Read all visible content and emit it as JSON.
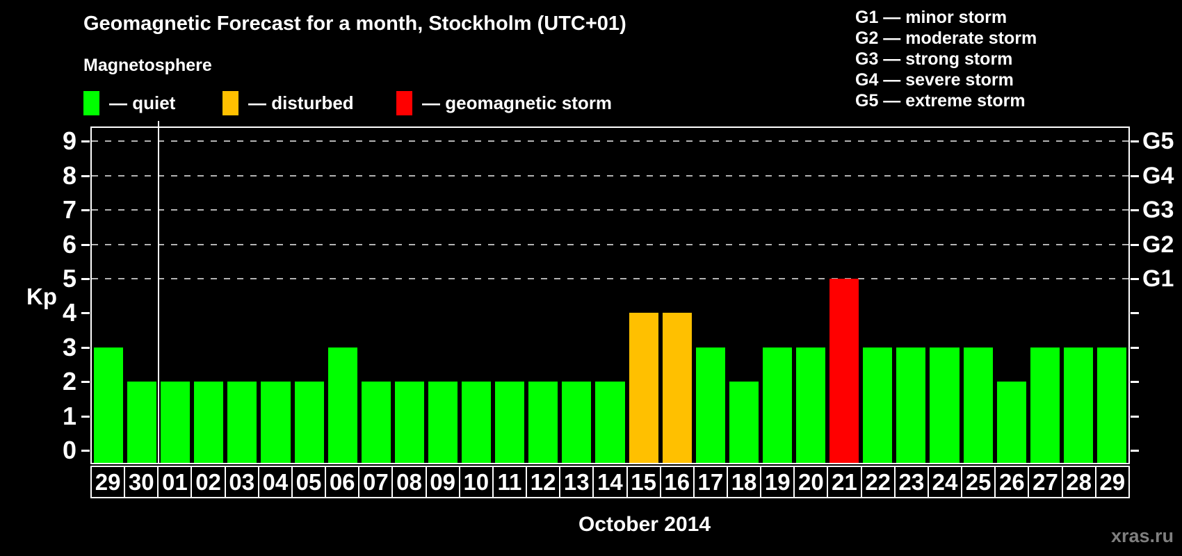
{
  "title": "Geomagnetic Forecast for a month, Stockholm (UTC+01)",
  "subtitle": "Magnetosphere",
  "legend": {
    "items": [
      {
        "label": "— quiet",
        "status": "quiet",
        "color": "#00ff00"
      },
      {
        "label": "— disturbed",
        "status": "disturbed",
        "color": "#ffc000"
      },
      {
        "label": "— geomagnetic storm",
        "status": "storm",
        "color": "#ff0000"
      }
    ]
  },
  "g_legend": [
    "G1 — minor storm",
    "G2 — moderate storm",
    "G3 — strong storm",
    "G4 — severe storm",
    "G5 — extreme storm"
  ],
  "watermark": "xras.ru",
  "chart_data": {
    "type": "bar",
    "title": "Geomagnetic Forecast for a month, Stockholm (UTC+01)",
    "xlabel": "October 2014",
    "ylabel": "Kp",
    "ylim": [
      0,
      9
    ],
    "yticks": [
      0,
      1,
      2,
      3,
      4,
      5,
      6,
      7,
      8,
      9
    ],
    "gridlines_at": [
      5,
      6,
      7,
      8,
      9
    ],
    "grid": "dashed horizontal at storm levels only",
    "legend_position": "top-left",
    "right_axis_labels": [
      {
        "label": "G1",
        "value": 5
      },
      {
        "label": "G2",
        "value": 6
      },
      {
        "label": "G3",
        "value": 7
      },
      {
        "label": "G4",
        "value": 8
      },
      {
        "label": "G5",
        "value": 9
      }
    ],
    "categories": [
      "29",
      "30",
      "01",
      "02",
      "03",
      "04",
      "05",
      "06",
      "07",
      "08",
      "09",
      "10",
      "11",
      "12",
      "13",
      "14",
      "15",
      "16",
      "17",
      "18",
      "19",
      "20",
      "21",
      "22",
      "23",
      "24",
      "25",
      "26",
      "27",
      "28",
      "29"
    ],
    "values": [
      3,
      2,
      2,
      2,
      2,
      2,
      2,
      3,
      2,
      2,
      2,
      2,
      2,
      2,
      2,
      2,
      4,
      4,
      3,
      2,
      3,
      3,
      5,
      3,
      3,
      3,
      3,
      2,
      3,
      3,
      3
    ],
    "statuses": [
      "quiet",
      "quiet",
      "quiet",
      "quiet",
      "quiet",
      "quiet",
      "quiet",
      "quiet",
      "quiet",
      "quiet",
      "quiet",
      "quiet",
      "quiet",
      "quiet",
      "quiet",
      "quiet",
      "disturbed",
      "disturbed",
      "quiet",
      "quiet",
      "quiet",
      "quiet",
      "storm",
      "quiet",
      "quiet",
      "quiet",
      "quiet",
      "quiet",
      "quiet",
      "quiet",
      "quiet"
    ],
    "status_colors": {
      "quiet": "#00ff00",
      "disturbed": "#ffc000",
      "storm": "#ff0000"
    },
    "month_separator_after_index": 1
  }
}
